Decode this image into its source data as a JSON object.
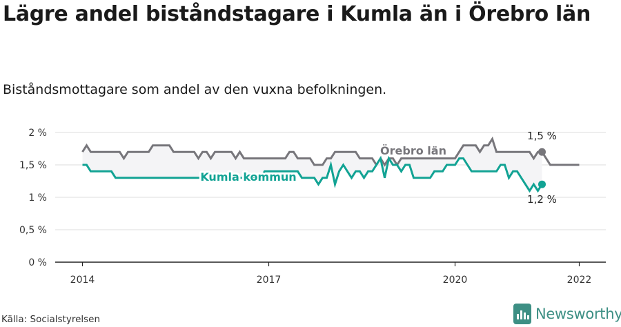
{
  "title": "Lägre andel biståndstagare i Kumla än i Örebro län",
  "subtitle": "Biståndsmottagare som andel av den vuxna befolkningen.",
  "source": "Källa: Socialstyrelsen",
  "brand": {
    "name": "Newsworthy",
    "color": "#3d8f84",
    "icon": "newsworthy-logo-icon"
  },
  "chart_data": {
    "type": "line",
    "x_start": "2014-01",
    "x_frequency": "monthly",
    "x_ticks": [
      "2014",
      "2017",
      "2020",
      "2022"
    ],
    "y_ticks": [
      "0 %",
      "0,5 %",
      "1 %",
      "1,5 %",
      "2 %"
    ],
    "ylim": [
      0,
      2
    ],
    "grid": true,
    "series": [
      {
        "name": "Örebro län",
        "color": "#77767b",
        "end_label": "1,5 %",
        "values": [
          1.7,
          1.8,
          1.7,
          1.7,
          1.7,
          1.7,
          1.7,
          1.7,
          1.7,
          1.7,
          1.6,
          1.7,
          1.7,
          1.7,
          1.7,
          1.7,
          1.7,
          1.8,
          1.8,
          1.8,
          1.8,
          1.8,
          1.7,
          1.7,
          1.7,
          1.7,
          1.7,
          1.7,
          1.6,
          1.7,
          1.7,
          1.6,
          1.7,
          1.7,
          1.7,
          1.7,
          1.7,
          1.6,
          1.7,
          1.6,
          1.6,
          1.6,
          1.6,
          1.6,
          1.6,
          1.6,
          1.6,
          1.6,
          1.6,
          1.6,
          1.7,
          1.7,
          1.6,
          1.6,
          1.6,
          1.6,
          1.5,
          1.5,
          1.5,
          1.6,
          1.6,
          1.7,
          1.7,
          1.7,
          1.7,
          1.7,
          1.7,
          1.6,
          1.6,
          1.6,
          1.6,
          1.5,
          1.6,
          1.5,
          1.6,
          1.6,
          1.5,
          1.6,
          1.6,
          1.6,
          1.6,
          1.6,
          1.6,
          1.6,
          1.6,
          1.6,
          1.6,
          1.6,
          1.6,
          1.6,
          1.6,
          1.7,
          1.8,
          1.8,
          1.8,
          1.8,
          1.7,
          1.8,
          1.8,
          1.9,
          1.7,
          1.7,
          1.7,
          1.7,
          1.7,
          1.7,
          1.7,
          1.7,
          1.7,
          1.6,
          1.7,
          1.7,
          1.6,
          1.5,
          1.5,
          1.5,
          1.5,
          1.5,
          1.5,
          1.5,
          1.5
        ]
      },
      {
        "name": "Kumla kommun",
        "color": "#12a394",
        "end_label": "1,2 %",
        "values": [
          1.5,
          1.5,
          1.4,
          1.4,
          1.4,
          1.4,
          1.4,
          1.4,
          1.3,
          1.3,
          1.3,
          1.3,
          1.3,
          1.3,
          1.3,
          1.3,
          1.3,
          1.3,
          1.3,
          1.3,
          1.3,
          1.3,
          1.3,
          1.3,
          1.3,
          1.3,
          1.3,
          1.3,
          1.3,
          1.3,
          1.3,
          1.3,
          1.3,
          1.3,
          1.3,
          1.3,
          1.3,
          1.3,
          1.3,
          1.3,
          1.3,
          1.3,
          1.3,
          1.3,
          1.4,
          1.4,
          1.4,
          1.4,
          1.4,
          1.4,
          1.4,
          1.4,
          1.4,
          1.3,
          1.3,
          1.3,
          1.3,
          1.2,
          1.3,
          1.3,
          1.5,
          1.2,
          1.4,
          1.5,
          1.4,
          1.3,
          1.4,
          1.4,
          1.3,
          1.4,
          1.4,
          1.5,
          1.6,
          1.3,
          1.6,
          1.5,
          1.5,
          1.4,
          1.5,
          1.5,
          1.3,
          1.3,
          1.3,
          1.3,
          1.3,
          1.4,
          1.4,
          1.4,
          1.5,
          1.5,
          1.5,
          1.6,
          1.6,
          1.5,
          1.4,
          1.4,
          1.4,
          1.4,
          1.4,
          1.4,
          1.4,
          1.5,
          1.5,
          1.3,
          1.4,
          1.4,
          1.3,
          1.2,
          1.1,
          1.2,
          1.1,
          1.2
        ]
      }
    ]
  }
}
